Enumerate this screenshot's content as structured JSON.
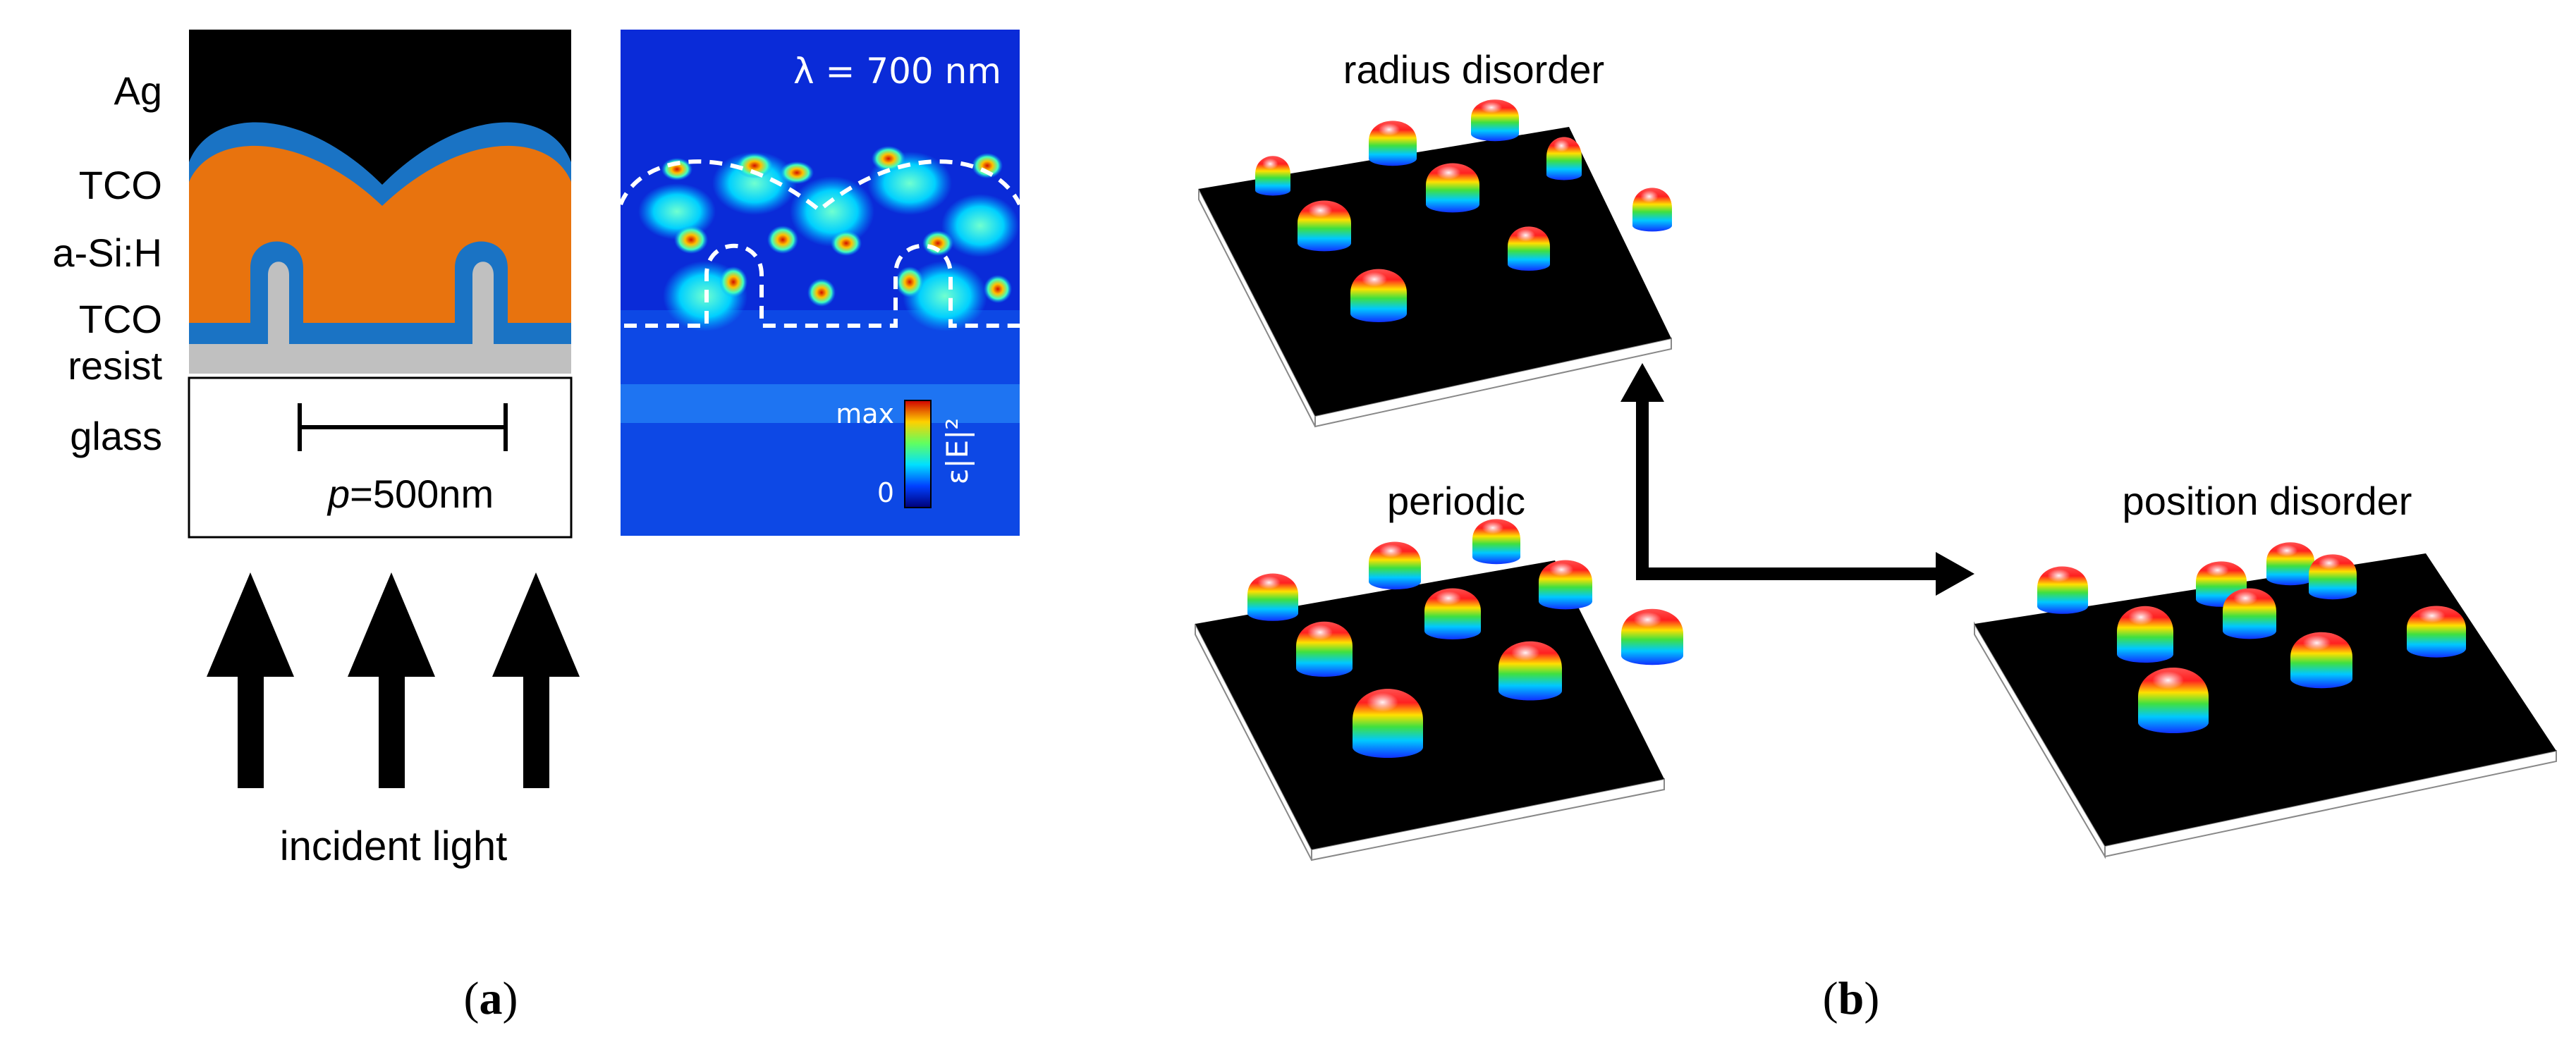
{
  "panel_a": {
    "layer_labels": [
      "Ag",
      "TCO",
      "a-Si:H",
      "TCO",
      "resist",
      "glass"
    ],
    "period_prefix": "p",
    "period_value": "=500nm",
    "incident_label": "incident light",
    "field_map": {
      "wavelength_label": "λ = 700 nm",
      "colorbar_max": "max",
      "colorbar_min": "0",
      "colorbar_quantity": "ε|E|²"
    },
    "caption": "a"
  },
  "panel_b": {
    "titles": {
      "radius": "radius disorder",
      "periodic": "periodic",
      "position": "position disorder"
    },
    "caption": "b"
  },
  "colors": {
    "ag": "#000000",
    "tco": "#1a73c4",
    "asi": "#e8730e",
    "resist": "#c0c0c0",
    "field_bg": "#0a2bd8",
    "arrow": "#000000"
  }
}
